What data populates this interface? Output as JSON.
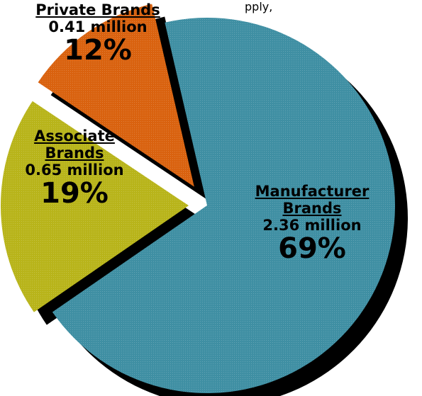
{
  "top_fragment": "pply,",
  "chart_data": {
    "type": "pie",
    "title": "",
    "unit": "million",
    "slices": [
      {
        "label": "Manufacturer Brands",
        "value_text": "2.36 million",
        "value": 2.36,
        "percent": 69,
        "percent_text": "69%",
        "color": "#3f8fa3"
      },
      {
        "label": "Associate Brands",
        "value_text": "0.65 million",
        "value": 0.65,
        "percent": 19,
        "percent_text": "19%",
        "color": "#b8b41a"
      },
      {
        "label": "Private Brands",
        "value_text": "0.41 million",
        "value": 0.41,
        "percent": 12,
        "percent_text": "12%",
        "color": "#d9620f"
      }
    ],
    "exploded": true,
    "shadow_color": "#000000"
  }
}
